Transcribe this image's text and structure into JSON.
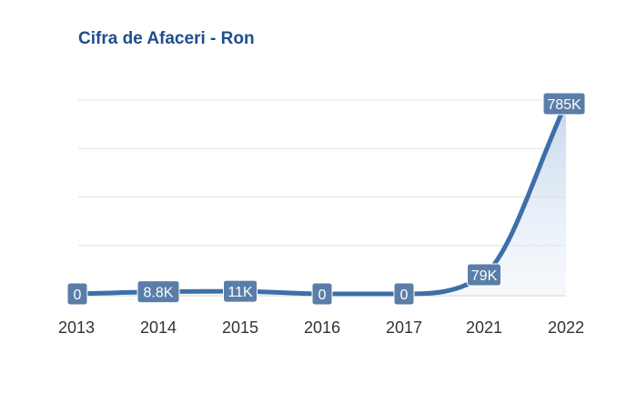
{
  "chart_data": {
    "type": "area",
    "title": "Cifra de Afaceri - Ron",
    "categories": [
      "2013",
      "2014",
      "2015",
      "2016",
      "2017",
      "2021",
      "2022"
    ],
    "values": [
      0,
      8800,
      11000,
      0,
      0,
      79000,
      785000
    ],
    "data_labels": [
      "0",
      "8.8K",
      "11K",
      "0",
      "0",
      "79K",
      "785K"
    ],
    "ylim": [
      0,
      800000
    ],
    "grid": true,
    "legend": "none",
    "line_color": "#3d6fa8",
    "label_bg_color": "#5a7ea8",
    "fill_color": "#d6e4f3"
  }
}
